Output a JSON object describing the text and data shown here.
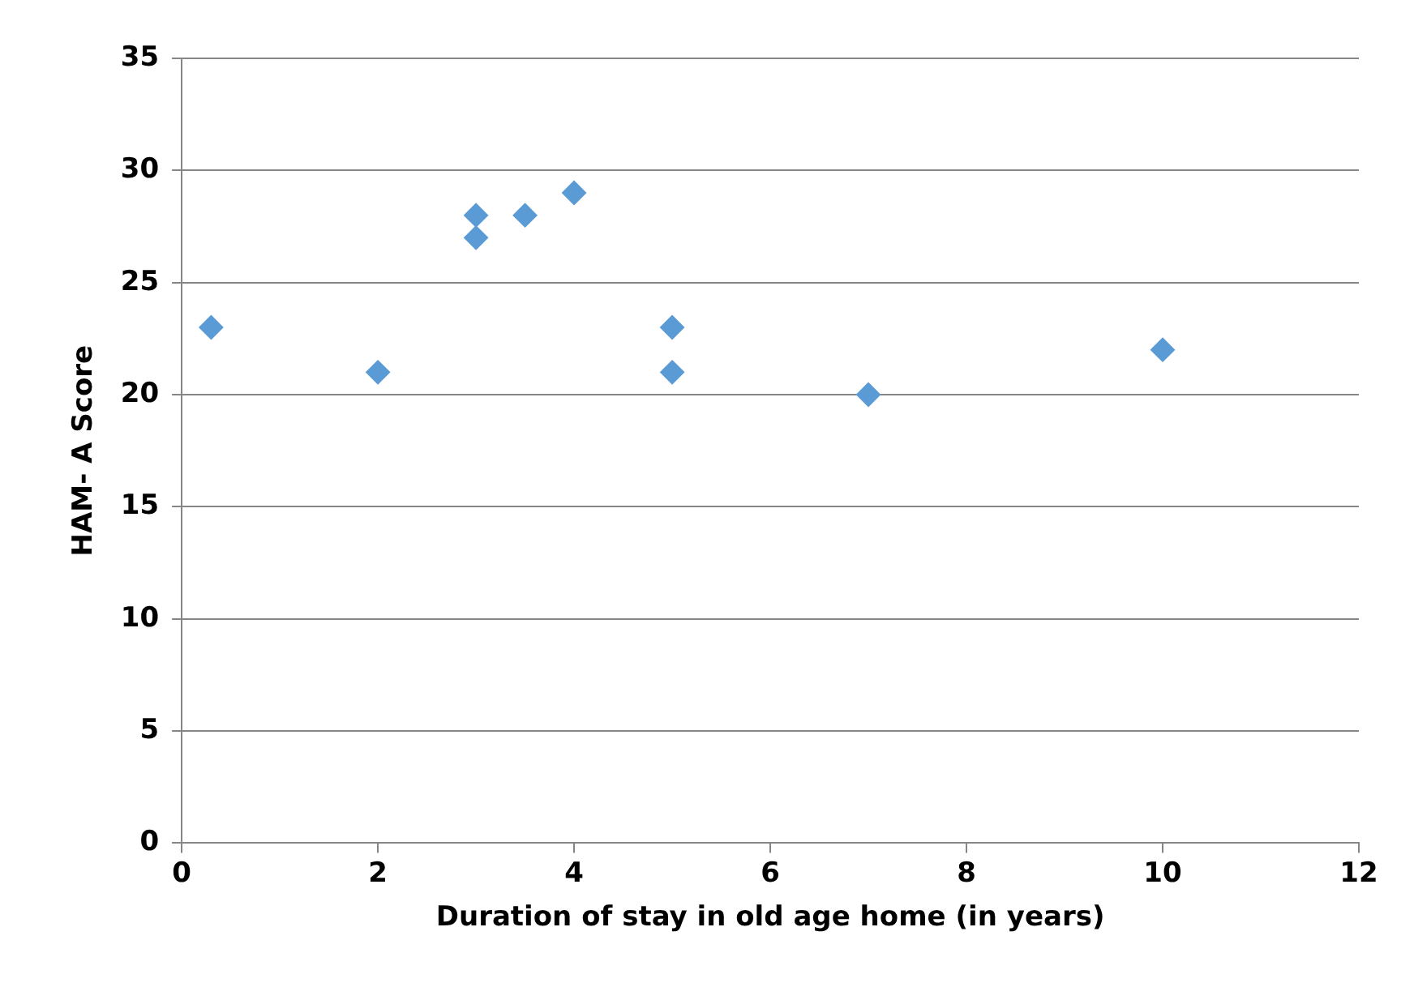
{
  "chart_data": {
    "type": "scatter",
    "xlabel": "Duration of stay in old age home (in years)",
    "ylabel": "HAM- A Score",
    "x": [
      0.3,
      2,
      3,
      3,
      3.5,
      4,
      5,
      5,
      7,
      10
    ],
    "values": [
      23,
      21,
      28,
      27,
      28,
      29,
      23,
      21,
      20,
      22
    ],
    "color": "#5b9bd5",
    "marker": "diamond",
    "xlim": [
      0,
      12
    ],
    "xticks": [
      0,
      2,
      4,
      6,
      8,
      10,
      12
    ],
    "ylim": [
      0,
      35
    ],
    "yticks": [
      0,
      5,
      10,
      15,
      20,
      25,
      30,
      35
    ],
    "grid": "y",
    "legend": false
  }
}
